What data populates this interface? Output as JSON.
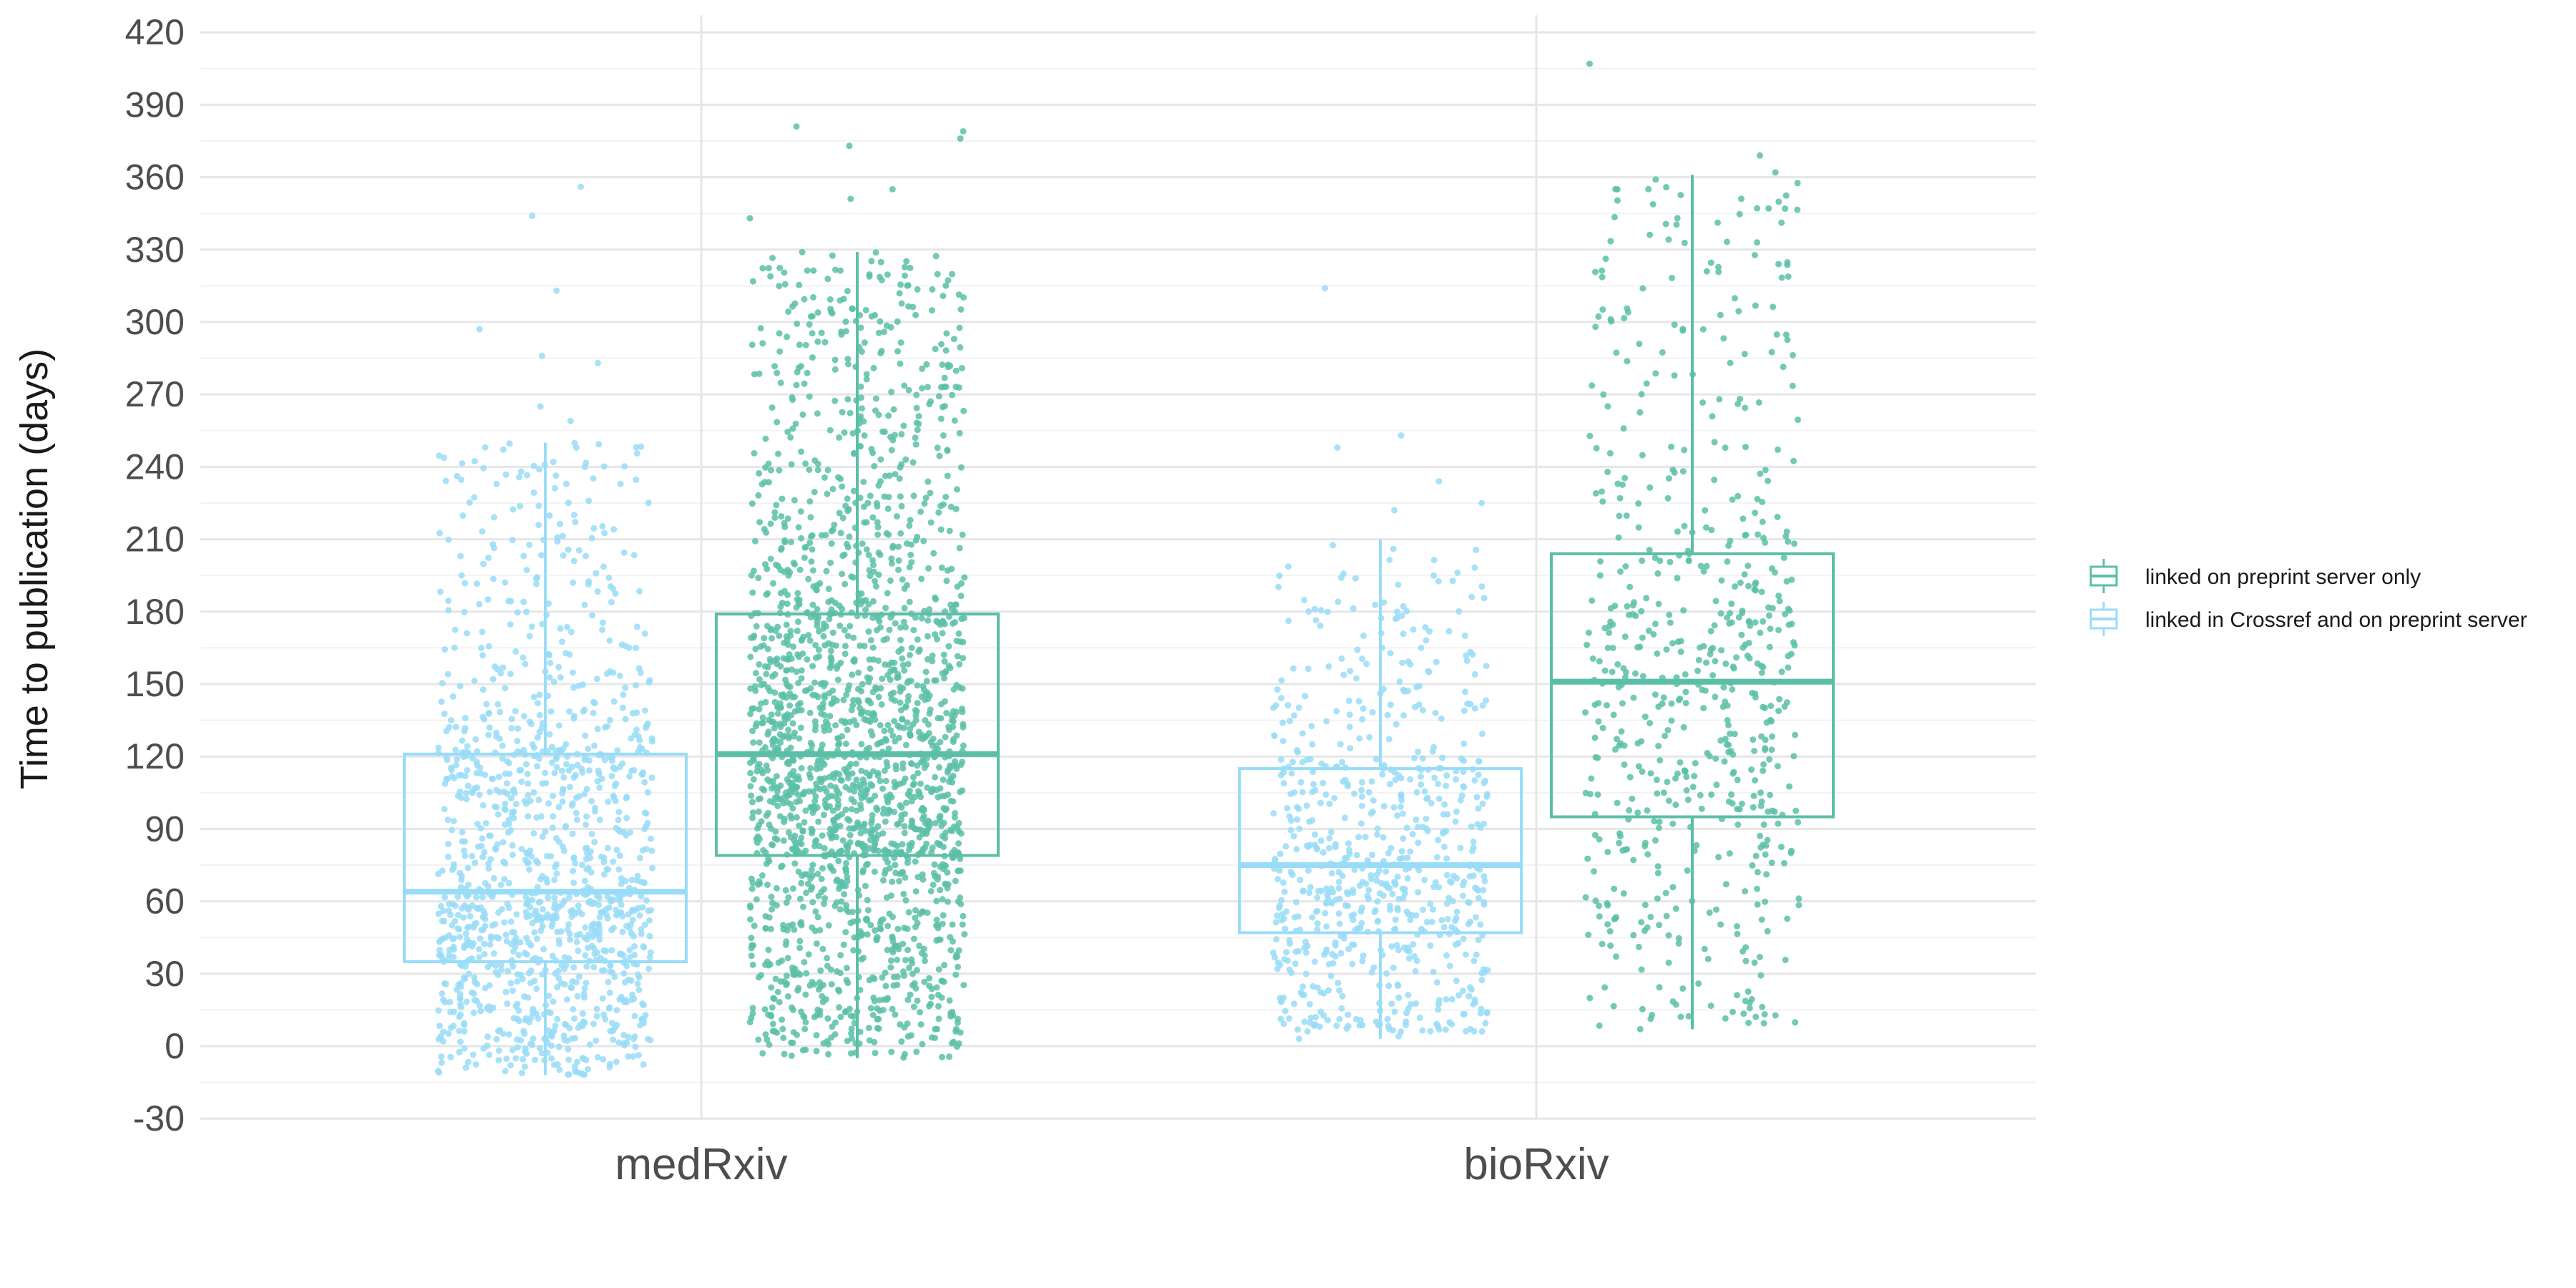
{
  "chart_data": {
    "type": "box",
    "ylabel": "Time to publication (days)",
    "xlabel": "",
    "ylim": [
      -30,
      420
    ],
    "y_ticks": [
      -30,
      0,
      30,
      60,
      90,
      120,
      150,
      180,
      210,
      240,
      270,
      300,
      330,
      360,
      390,
      420
    ],
    "categories": [
      "medRxiv",
      "bioRxiv"
    ],
    "grid": true,
    "legend_position": "right",
    "series": [
      {
        "name": "linked on preprint server only",
        "color": "#5bbfa7",
        "boxes": [
          {
            "category": "medRxiv",
            "whisker_low": -5,
            "q1": 79,
            "median": 121,
            "q3": 179,
            "whisker_high": 329,
            "points_shown": 2000,
            "outliers": [
              343,
              351,
              355,
              373,
              376,
              379,
              381
            ]
          },
          {
            "category": "bioRxiv",
            "whisker_low": 7,
            "q1": 95,
            "median": 151,
            "q3": 204,
            "whisker_high": 361,
            "points_shown": 600,
            "outliers": [
              362,
              369,
              407
            ]
          }
        ]
      },
      {
        "name": "linked in Crossref and on preprint server",
        "color": "#99dcf7",
        "boxes": [
          {
            "category": "medRxiv",
            "whisker_low": -12,
            "q1": 35,
            "median": 64,
            "q3": 121,
            "whisker_high": 250,
            "points_shown": 1200,
            "outliers": [
              259,
              265,
              283,
              286,
              297,
              313,
              344,
              356
            ]
          },
          {
            "category": "bioRxiv",
            "whisker_low": 3,
            "q1": 47,
            "median": 75,
            "q3": 115,
            "whisker_high": 210,
            "points_shown": 700,
            "outliers": [
              222,
              225,
              234,
              248,
              253,
              314
            ]
          }
        ]
      }
    ]
  }
}
